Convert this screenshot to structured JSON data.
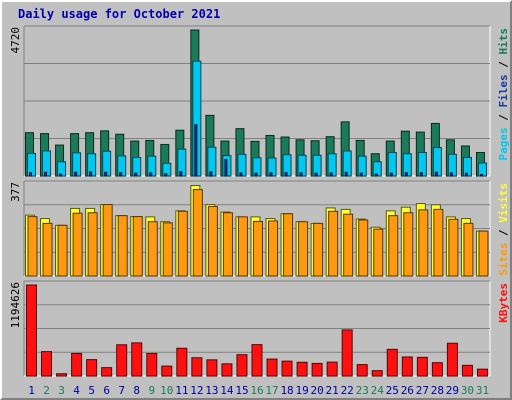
{
  "title": "Daily usage for October 2021",
  "colors": {
    "hits": "#1a7a5a",
    "files": "#00c8f0",
    "pages": "#1a3aa0",
    "visits": "#ffff33",
    "sites": "#ff9a10",
    "kbytes": "#ff1010",
    "weekend_day": "#1a7a5a",
    "weekday": "#0000a0",
    "panel_bg": "#c0c0c0",
    "grid": "#808080"
  },
  "chart_data": [
    {
      "type": "bar",
      "panel": "hits-files-pages",
      "ymax_label": "4720",
      "right_label": {
        "pages": "Pages",
        "files": "Files",
        "hits": "Hits",
        "sep": " / "
      },
      "ylim": [
        0,
        4720
      ],
      "categories": [
        "1",
        "2",
        "3",
        "4",
        "5",
        "6",
        "7",
        "8",
        "9",
        "10",
        "11",
        "12",
        "13",
        "14",
        "15",
        "16",
        "17",
        "18",
        "19",
        "20",
        "21",
        "22",
        "23",
        "24",
        "25",
        "26",
        "27",
        "28",
        "29",
        "30",
        "31"
      ],
      "series": [
        {
          "name": "Hits",
          "values": [
            1400,
            1370,
            1000,
            1370,
            1400,
            1460,
            1350,
            1130,
            1150,
            1020,
            1480,
            4720,
            1960,
            1130,
            1530,
            1120,
            1310,
            1260,
            1170,
            1140,
            1270,
            1750,
            1150,
            720,
            1130,
            1450,
            1420,
            1700,
            1170,
            970,
            760
          ]
        },
        {
          "name": "Files",
          "values": [
            730,
            810,
            460,
            750,
            720,
            800,
            650,
            600,
            640,
            410,
            870,
            3710,
            930,
            660,
            700,
            590,
            580,
            690,
            670,
            670,
            720,
            810,
            640,
            460,
            760,
            720,
            760,
            920,
            700,
            600,
            420
          ]
        },
        {
          "name": "Pages",
          "values": [
            110,
            120,
            60,
            120,
            130,
            120,
            110,
            90,
            100,
            70,
            140,
            1660,
            130,
            530,
            100,
            90,
            100,
            110,
            100,
            90,
            100,
            120,
            90,
            60,
            90,
            110,
            110,
            120,
            100,
            90,
            50
          ]
        }
      ]
    },
    {
      "type": "bar",
      "panel": "visits-sites",
      "ymax_label": "377",
      "right_label": {
        "sites": "Sites",
        "visits": "Visits",
        "sep": " / "
      },
      "ylim": [
        0,
        377
      ],
      "categories": [
        "1",
        "2",
        "3",
        "4",
        "5",
        "6",
        "7",
        "8",
        "9",
        "10",
        "11",
        "12",
        "13",
        "14",
        "15",
        "16",
        "17",
        "18",
        "19",
        "20",
        "21",
        "22",
        "23",
        "24",
        "25",
        "26",
        "27",
        "28",
        "29",
        "30",
        "31"
      ],
      "series": [
        {
          "name": "Visits",
          "values": [
            252,
            238,
            210,
            280,
            280,
            296,
            250,
            246,
            245,
            225,
            270,
            375,
            296,
            265,
            245,
            245,
            238,
            258,
            225,
            218,
            282,
            276,
            236,
            202,
            270,
            285,
            300,
            295,
            245,
            238,
            186
          ]
        },
        {
          "name": "Sites",
          "values": [
            246,
            218,
            210,
            260,
            262,
            296,
            250,
            246,
            225,
            220,
            268,
            358,
            288,
            262,
            245,
            226,
            228,
            258,
            225,
            218,
            268,
            256,
            232,
            194,
            250,
            262,
            274,
            276,
            235,
            218,
            186
          ]
        }
      ]
    },
    {
      "type": "bar",
      "panel": "kbytes",
      "ymax_label": "1194626",
      "right_label": {
        "kbytes": "KBytes"
      },
      "ylim": [
        0,
        1194626
      ],
      "categories": [
        "1",
        "2",
        "3",
        "4",
        "5",
        "6",
        "7",
        "8",
        "9",
        "10",
        "11",
        "12",
        "13",
        "14",
        "15",
        "16",
        "17",
        "18",
        "19",
        "20",
        "21",
        "22",
        "23",
        "24",
        "25",
        "26",
        "27",
        "28",
        "29",
        "30",
        "31"
      ],
      "series": [
        {
          "name": "KBytes",
          "values": [
            1194626,
            320000,
            30000,
            296000,
            215000,
            110000,
            410000,
            435000,
            296000,
            130000,
            364000,
            240000,
            212000,
            160000,
            280000,
            412000,
            222000,
            195000,
            180000,
            165000,
            182000,
            605000,
            150000,
            70000,
            350000,
            250000,
            245000,
            175000,
            430000,
            140000,
            90000
          ]
        }
      ]
    }
  ],
  "x_labels": [
    "1",
    "2",
    "3",
    "4",
    "5",
    "6",
    "7",
    "8",
    "9",
    "10",
    "11",
    "12",
    "13",
    "14",
    "15",
    "16",
    "17",
    "18",
    "19",
    "20",
    "21",
    "22",
    "23",
    "24",
    "25",
    "26",
    "27",
    "28",
    "29",
    "30",
    "31"
  ],
  "weekend_days": [
    2,
    3,
    9,
    10,
    16,
    17,
    23,
    24,
    30,
    31
  ]
}
